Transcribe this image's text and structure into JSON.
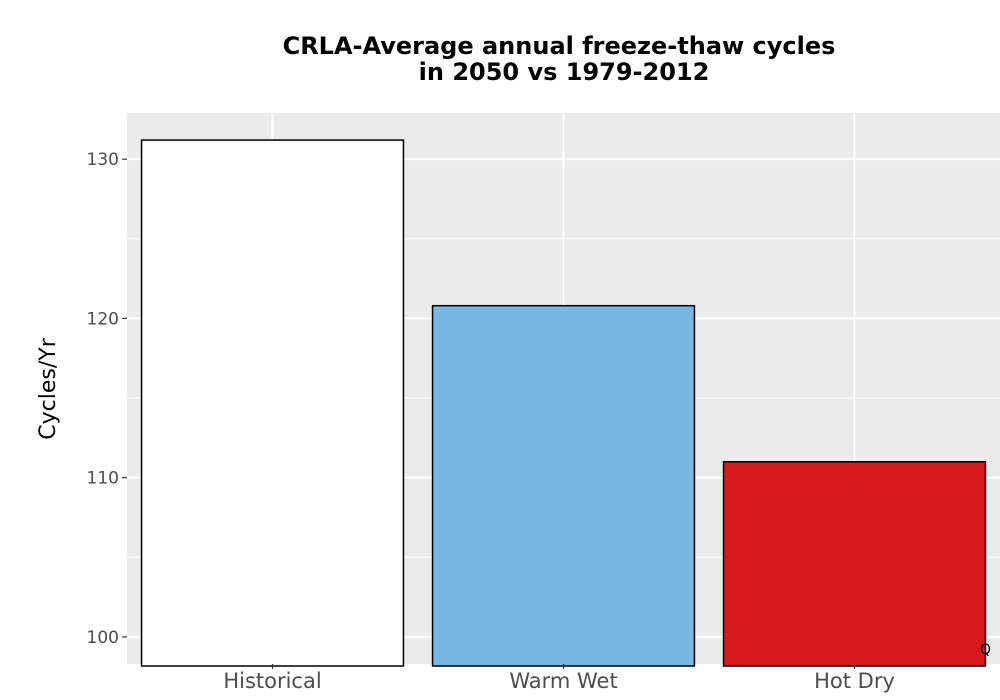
{
  "chart_data": {
    "type": "bar",
    "title_line1": "CRLA-Average annual freeze-thaw cycles",
    "title_line2": "in 2050 vs 1979-2012",
    "xlabel": "",
    "ylabel": "Cycles/Yr",
    "categories": [
      "Historical",
      "Warm Wet",
      "Hot Dry"
    ],
    "values": [
      131.2,
      120.8,
      111.0
    ],
    "colors": [
      "#ffffff",
      "#78b7e1",
      "#d7191c"
    ],
    "bar_border_color": "#000000",
    "ylim": [
      98.3,
      132.9
    ],
    "yticks": [
      100,
      110,
      120,
      130
    ],
    "ytick_labels": [
      "100",
      "110",
      "120",
      "130"
    ],
    "minor_yticks": [
      105,
      115,
      125
    ],
    "grid": true,
    "panel_background": "#ebebeb",
    "annotation": "Q"
  }
}
